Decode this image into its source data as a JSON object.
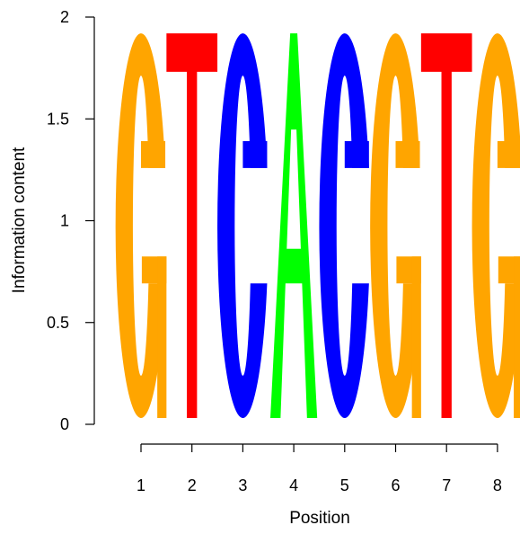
{
  "chart_data": {
    "type": "sequence-logo",
    "xlabel": "Position",
    "ylabel": "Information content",
    "ylim": [
      0,
      2
    ],
    "y_ticks": [
      "0",
      "0.5",
      "1",
      "1.5",
      "2"
    ],
    "y_tick_values": [
      0,
      0.5,
      1,
      1.5,
      2
    ],
    "positions": [
      "1",
      "2",
      "3",
      "4",
      "5",
      "6",
      "7",
      "8"
    ],
    "letters": [
      "G",
      "T",
      "C",
      "A",
      "C",
      "G",
      "T",
      "G"
    ],
    "information_content": [
      1.92,
      1.92,
      1.92,
      1.92,
      1.92,
      1.92,
      1.92,
      1.92
    ],
    "colors": {
      "A": "#00ff00",
      "C": "#0000ff",
      "G": "#ffa500",
      "T": "#ff0000"
    }
  }
}
